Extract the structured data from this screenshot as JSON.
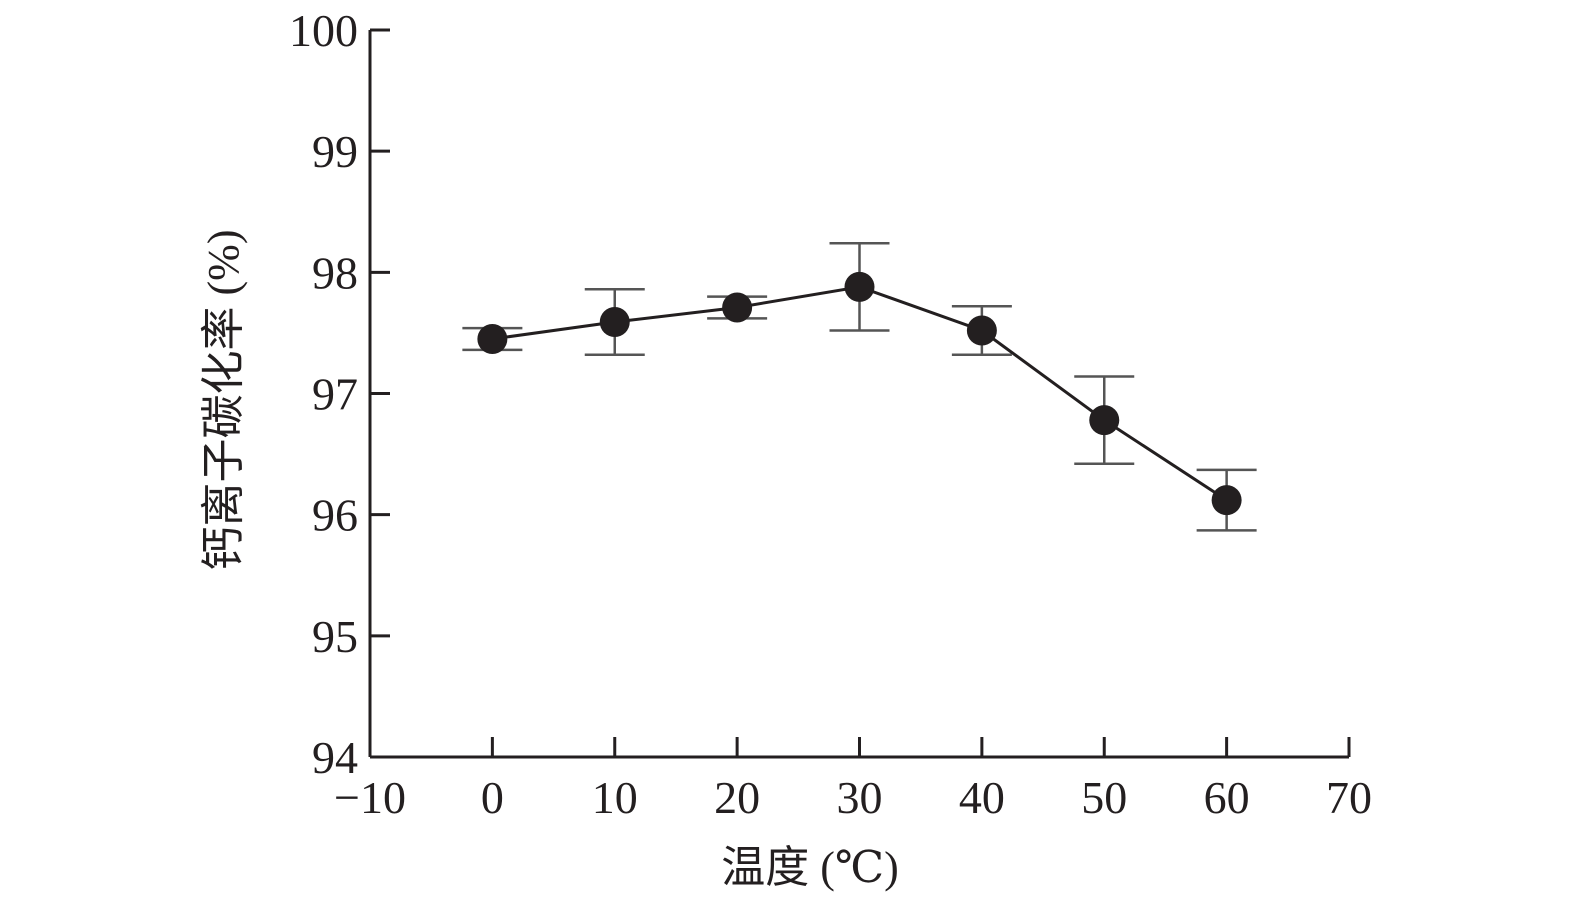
{
  "chart_data": {
    "type": "line",
    "title": "",
    "xlabel": "温度 (℃)",
    "ylabel": "钙离子碳化率 (%)",
    "xlim": [
      -10,
      70
    ],
    "ylim": [
      94,
      100
    ],
    "xticks": [
      -10,
      0,
      10,
      20,
      30,
      40,
      50,
      60,
      70
    ],
    "xtick_labels": [
      "−10",
      "0",
      "10",
      "20",
      "30",
      "40",
      "50",
      "60",
      "70"
    ],
    "yticks": [
      94,
      95,
      96,
      97,
      98,
      99,
      100
    ],
    "ytick_labels": [
      "94",
      "95",
      "96",
      "97",
      "98",
      "99",
      "100"
    ],
    "grid": false,
    "series": [
      {
        "name": "钙离子碳化率",
        "x": [
          0,
          10,
          20,
          30,
          40,
          50,
          60
        ],
        "y": [
          97.45,
          97.59,
          97.71,
          97.88,
          97.52,
          96.78,
          96.12
        ],
        "error": [
          0.09,
          0.27,
          0.09,
          0.36,
          0.2,
          0.36,
          0.25
        ],
        "color": "#231f20"
      }
    ]
  }
}
